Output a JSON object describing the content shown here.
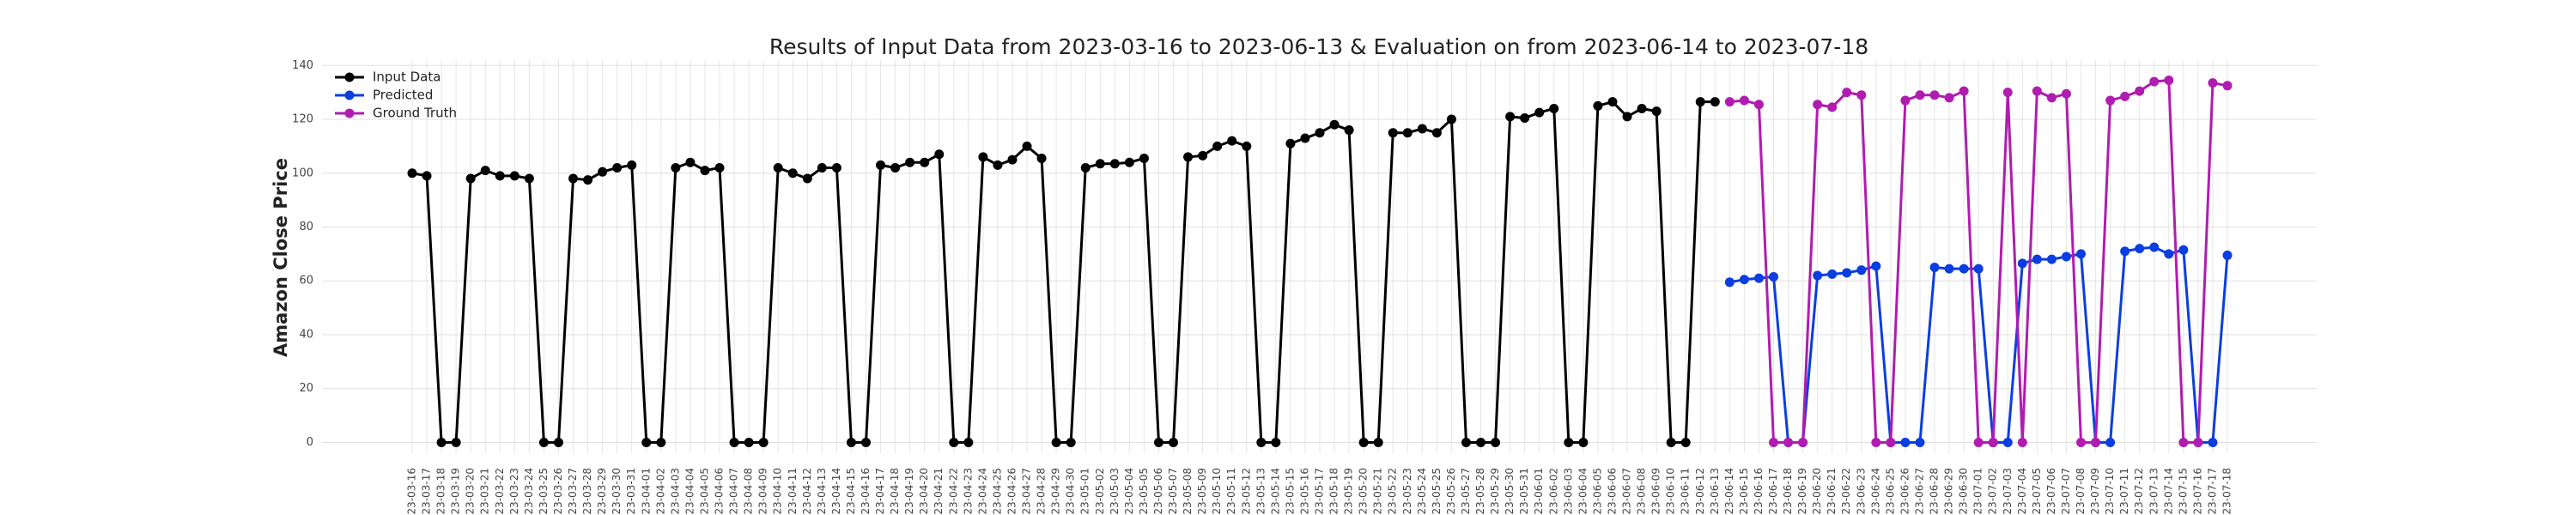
{
  "chart_data": {
    "type": "line",
    "title": "Results of Input Data from 2023-03-16 to 2023-06-13 & Evaluation on from 2023-06-14 to 2023-07-18",
    "y_label": "Amazon Close Price",
    "categories": [
      "2023-03-16",
      "2023-03-17",
      "2023-03-18",
      "2023-03-19",
      "2023-03-20",
      "2023-03-21",
      "2023-03-22",
      "2023-03-23",
      "2023-03-24",
      "2023-03-25",
      "2023-03-26",
      "2023-03-27",
      "2023-03-28",
      "2023-03-29",
      "2023-03-30",
      "2023-03-31",
      "2023-04-01",
      "2023-04-02",
      "2023-04-03",
      "2023-04-04",
      "2023-04-05",
      "2023-04-06",
      "2023-04-07",
      "2023-04-08",
      "2023-04-09",
      "2023-04-10",
      "2023-04-11",
      "2023-04-12",
      "2023-04-13",
      "2023-04-14",
      "2023-04-15",
      "2023-04-16",
      "2023-04-17",
      "2023-04-18",
      "2023-04-19",
      "2023-04-20",
      "2023-04-21",
      "2023-04-22",
      "2023-04-23",
      "2023-04-24",
      "2023-04-25",
      "2023-04-26",
      "2023-04-27",
      "2023-04-28",
      "2023-04-29",
      "2023-04-30",
      "2023-05-01",
      "2023-05-02",
      "2023-05-03",
      "2023-05-04",
      "2023-05-05",
      "2023-05-06",
      "2023-05-07",
      "2023-05-08",
      "2023-05-09",
      "2023-05-10",
      "2023-05-11",
      "2023-05-12",
      "2023-05-13",
      "2023-05-14",
      "2023-05-15",
      "2023-05-16",
      "2023-05-17",
      "2023-05-18",
      "2023-05-19",
      "2023-05-20",
      "2023-05-21",
      "2023-05-22",
      "2023-05-23",
      "2023-05-24",
      "2023-05-25",
      "2023-05-26",
      "2023-05-27",
      "2023-05-28",
      "2023-05-29",
      "2023-05-30",
      "2023-05-31",
      "2023-06-01",
      "2023-06-02",
      "2023-06-03",
      "2023-06-04",
      "2023-06-05",
      "2023-06-06",
      "2023-06-07",
      "2023-06-08",
      "2023-06-09",
      "2023-06-10",
      "2023-06-11",
      "2023-06-12",
      "2023-06-13",
      "2023-06-14",
      "2023-06-15",
      "2023-06-16",
      "2023-06-17",
      "2023-06-18",
      "2023-06-19",
      "2023-06-20",
      "2023-06-21",
      "2023-06-22",
      "2023-06-23",
      "2023-06-24",
      "2023-06-25",
      "2023-06-26",
      "2023-06-27",
      "2023-06-28",
      "2023-06-29",
      "2023-06-30",
      "2023-07-01",
      "2023-07-02",
      "2023-07-03",
      "2023-07-04",
      "2023-07-05",
      "2023-07-06",
      "2023-07-07",
      "2023-07-08",
      "2023-07-09",
      "2023-07-10",
      "2023-07-11",
      "2023-07-12",
      "2023-07-13",
      "2023-07-14",
      "2023-07-15",
      "2023-07-16",
      "2023-07-17",
      "2023-07-18"
    ],
    "series": [
      {
        "name": "Input Data",
        "color": "#000000",
        "values": [
          100,
          99,
          0,
          0,
          98,
          101,
          99,
          99,
          98,
          0,
          0,
          98,
          97.5,
          100.5,
          102,
          103,
          0,
          0,
          102,
          104,
          101,
          102,
          0,
          0,
          0,
          102,
          100,
          98,
          102,
          102,
          0,
          0,
          103,
          102,
          104,
          104,
          107,
          0,
          0,
          106,
          103,
          105,
          110,
          105.5,
          0,
          0,
          102,
          103.5,
          103.5,
          104,
          105.5,
          0,
          0,
          106,
          106.5,
          110,
          112,
          110,
          0,
          0,
          111,
          113,
          115,
          118,
          116,
          0,
          0,
          115,
          115,
          116.5,
          115,
          120,
          0,
          0,
          0,
          121,
          120.5,
          122.5,
          124,
          0,
          0,
          125,
          126.5,
          121,
          124,
          123,
          0,
          0,
          126.5,
          126.5,
          null,
          null,
          null,
          null,
          null,
          null,
          null,
          null,
          null,
          null,
          null,
          null,
          null,
          null,
          null,
          null,
          null,
          null,
          null,
          null,
          null,
          null,
          null,
          null,
          null,
          null,
          null,
          null,
          null,
          null,
          null,
          null,
          null,
          null,
          null
        ]
      },
      {
        "name": "Predicted",
        "color": "#0b3ee0",
        "values": [
          null,
          null,
          null,
          null,
          null,
          null,
          null,
          null,
          null,
          null,
          null,
          null,
          null,
          null,
          null,
          null,
          null,
          null,
          null,
          null,
          null,
          null,
          null,
          null,
          null,
          null,
          null,
          null,
          null,
          null,
          null,
          null,
          null,
          null,
          null,
          null,
          null,
          null,
          null,
          null,
          null,
          null,
          null,
          null,
          null,
          null,
          null,
          null,
          null,
          null,
          null,
          null,
          null,
          null,
          null,
          null,
          null,
          null,
          null,
          null,
          null,
          null,
          null,
          null,
          null,
          null,
          null,
          null,
          null,
          null,
          null,
          null,
          null,
          null,
          null,
          null,
          null,
          null,
          null,
          null,
          null,
          null,
          null,
          null,
          null,
          null,
          null,
          null,
          null,
          null,
          59.5,
          60.5,
          61,
          61.5,
          0,
          0,
          62,
          62.5,
          63,
          64,
          65.5,
          0,
          0,
          0,
          65,
          64.5,
          64.5,
          64.5,
          0,
          0,
          66.5,
          68,
          68,
          69,
          70,
          0,
          0,
          71,
          72,
          72.5,
          70,
          71.5,
          0,
          0,
          69.5
        ]
      },
      {
        "name": "Ground Truth",
        "color": "#b01cb0",
        "values": [
          null,
          null,
          null,
          null,
          null,
          null,
          null,
          null,
          null,
          null,
          null,
          null,
          null,
          null,
          null,
          null,
          null,
          null,
          null,
          null,
          null,
          null,
          null,
          null,
          null,
          null,
          null,
          null,
          null,
          null,
          null,
          null,
          null,
          null,
          null,
          null,
          null,
          null,
          null,
          null,
          null,
          null,
          null,
          null,
          null,
          null,
          null,
          null,
          null,
          null,
          null,
          null,
          null,
          null,
          null,
          null,
          null,
          null,
          null,
          null,
          null,
          null,
          null,
          null,
          null,
          null,
          null,
          null,
          null,
          null,
          null,
          null,
          null,
          null,
          null,
          null,
          null,
          null,
          null,
          null,
          null,
          null,
          null,
          null,
          null,
          null,
          null,
          null,
          null,
          null,
          126.5,
          127,
          125.5,
          0,
          0,
          0,
          125.5,
          124.5,
          130,
          129,
          0,
          0,
          127,
          129,
          129,
          128,
          130.5,
          0,
          0,
          130,
          0,
          130.5,
          128,
          129.5,
          0,
          0,
          127,
          128.5,
          130.5,
          134,
          134.5,
          0,
          0,
          133.5,
          132.5
        ]
      }
    ],
    "ylim": [
      -4,
      142
    ],
    "yticks": [
      0,
      20,
      40,
      60,
      80,
      100,
      120,
      140
    ],
    "grid": true,
    "legend": "upper left"
  }
}
